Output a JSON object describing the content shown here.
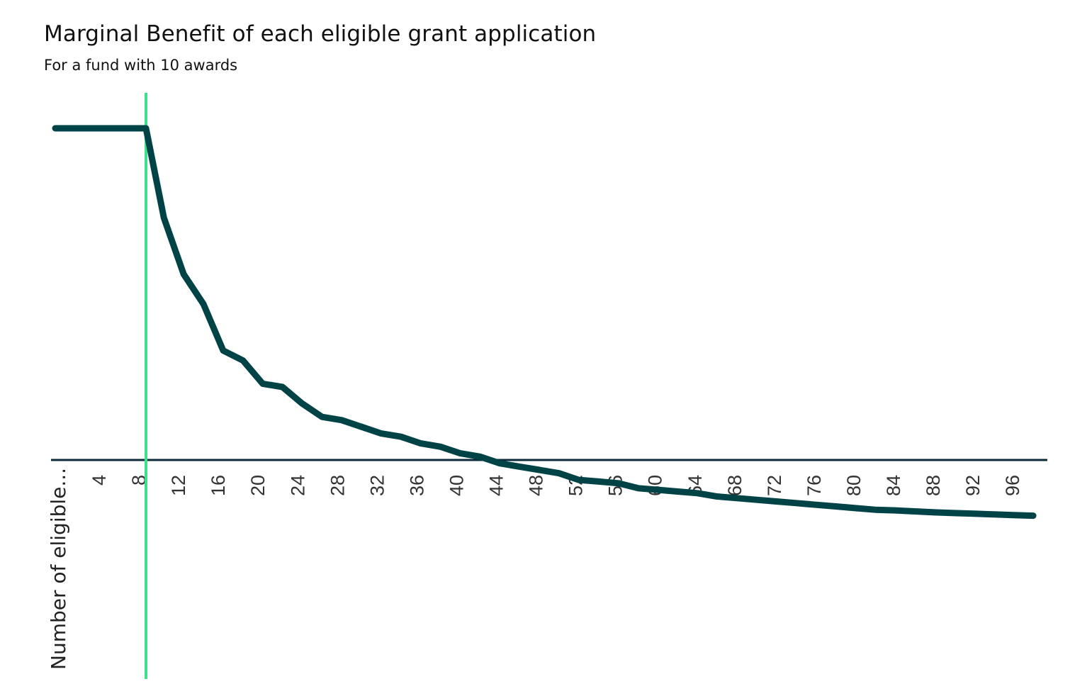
{
  "title": "Marginal Benefit of each eligible grant application",
  "subtitle": "For a fund with 10 awards",
  "colors": {
    "curve": "#004346",
    "baseline": "#0b2b3a",
    "threshold": "#3fe08a",
    "text": "#111111"
  },
  "chart_data": {
    "type": "line",
    "title": "Marginal Benefit of each eligible grant application",
    "subtitle": "For a fund with 10 awards",
    "xlabel": "Number of eligible...",
    "ylabel": "",
    "xlim": [
      1,
      101
    ],
    "ylim": [
      -0.2,
      1.05
    ],
    "grid": false,
    "legend": "none",
    "x_ticks": [
      4,
      8,
      12,
      16,
      20,
      24,
      28,
      32,
      36,
      40,
      44,
      48,
      52,
      56,
      60,
      64,
      68,
      72,
      76,
      80,
      84,
      88,
      92,
      96
    ],
    "threshold_x": 10,
    "baseline_y": 0,
    "series": [
      {
        "name": "Marginal benefit",
        "x": [
          1,
          4,
          8,
          10,
          12,
          14,
          16,
          18,
          20,
          22,
          24,
          26,
          28,
          30,
          32,
          34,
          36,
          38,
          40,
          42,
          44,
          46,
          48,
          50,
          52,
          54,
          56,
          58,
          60,
          62,
          64,
          66,
          68,
          70,
          72,
          74,
          76,
          78,
          80,
          82,
          84,
          86,
          88,
          90,
          92,
          94,
          96,
          98,
          100
        ],
        "y": [
          1.0,
          1.0,
          1.0,
          1.0,
          0.73,
          0.56,
          0.47,
          0.33,
          0.3,
          0.23,
          0.22,
          0.17,
          0.13,
          0.12,
          0.1,
          0.08,
          0.07,
          0.05,
          0.04,
          0.02,
          0.01,
          -0.01,
          -0.02,
          -0.03,
          -0.04,
          -0.06,
          -0.065,
          -0.07,
          -0.085,
          -0.09,
          -0.095,
          -0.1,
          -0.11,
          -0.115,
          -0.12,
          -0.125,
          -0.13,
          -0.135,
          -0.14,
          -0.145,
          -0.15,
          -0.152,
          -0.155,
          -0.158,
          -0.16,
          -0.162,
          -0.164,
          -0.166,
          -0.168
        ]
      }
    ]
  }
}
